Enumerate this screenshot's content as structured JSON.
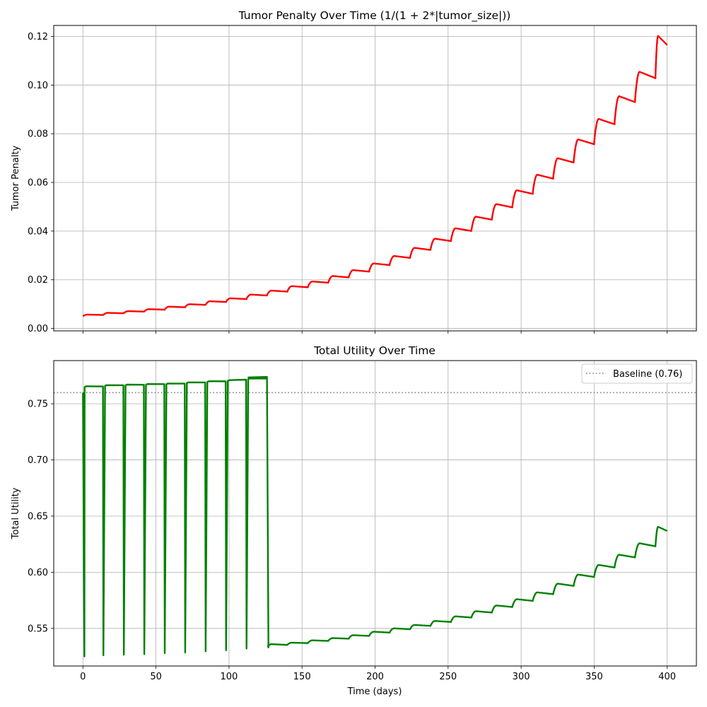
{
  "chart_data": [
    {
      "type": "line",
      "title": "Tumor Penalty Over Time (1/(1 + 2*|tumor_size|))",
      "xlabel": "",
      "ylabel": "Tumor Penalty",
      "xlim": [
        -20,
        420
      ],
      "ylim": [
        -0.001,
        0.1245
      ],
      "xticks": [
        0,
        50,
        100,
        150,
        200,
        250,
        300,
        350,
        400
      ],
      "yticks": [
        0.0,
        0.02,
        0.04,
        0.06,
        0.08,
        0.1,
        0.12
      ],
      "ytick_labels": [
        "0.00",
        "0.02",
        "0.04",
        "0.06",
        "0.08",
        "0.10",
        "0.12"
      ],
      "grid": true,
      "series": [
        {
          "color": "#ff0000",
          "x": [
            0,
            14,
            28,
            42,
            56,
            70,
            84,
            98,
            112,
            126,
            140,
            154,
            168,
            182,
            196,
            210,
            224,
            238,
            252,
            266,
            280,
            294,
            308,
            322,
            336,
            350,
            364,
            378,
            392,
            400
          ],
          "y": [
            0.005,
            0.0056,
            0.0063,
            0.007,
            0.0078,
            0.0088,
            0.0098,
            0.011,
            0.0122,
            0.0137,
            0.0153,
            0.0171,
            0.019,
            0.0212,
            0.0236,
            0.0263,
            0.0293,
            0.0326,
            0.0363,
            0.0405,
            0.0452,
            0.0503,
            0.0559,
            0.0622,
            0.0689,
            0.0765,
            0.0848,
            0.094,
            0.1039,
            0.118
          ]
        }
      ]
    },
    {
      "type": "line",
      "title": "Total Utility Over Time",
      "xlabel": "Time (days)",
      "ylabel": "Total Utility",
      "xlim": [
        -20,
        420
      ],
      "ylim": [
        0.5165,
        0.7885
      ],
      "xticks": [
        0,
        50,
        100,
        150,
        200,
        250,
        300,
        350,
        400
      ],
      "yticks": [
        0.55,
        0.6,
        0.65,
        0.7,
        0.75
      ],
      "ytick_labels": [
        "0.55",
        "0.60",
        "0.65",
        "0.70",
        "0.75"
      ],
      "grid": true,
      "legend_position": "top-right",
      "baseline": {
        "label": "Baseline (0.76)",
        "value": 0.76,
        "color": "#808080"
      },
      "series": [
        {
          "color": "#008000",
          "high_phase": {
            "x": [
              1,
              15,
              29,
              43,
              57,
              71,
              85,
              99,
              113
            ],
            "start": [
              0.765,
              0.766,
              0.7665,
              0.767,
              0.7675,
              0.7685,
              0.7695,
              0.7705,
              0.772
            ],
            "end": [
              0.7655,
              0.7665,
              0.767,
              0.7675,
              0.768,
              0.769,
              0.77,
              0.7715,
              0.7725
            ],
            "dip_x": [
              14,
              28,
              42,
              56,
              70,
              84,
              98,
              112
            ],
            "dip_min": [
              0.526,
              0.5265,
              0.527,
              0.528,
              0.5285,
              0.5295,
              0.5305,
              0.532
            ]
          },
          "first_point": {
            "x": 0,
            "y": 0.76,
            "dip_x": 1,
            "dip_y": 0.525
          },
          "last_high": {
            "x_start": 113,
            "x_end": 126,
            "y_start": 0.7735,
            "y_end": 0.774,
            "drop_x": 127,
            "drop_y": 0.533
          },
          "low_phase": {
            "x": [
              126,
              140,
              154,
              168,
              182,
              196,
              210,
              224,
              238,
              252,
              266,
              280,
              294,
              308,
              322,
              336,
              350,
              364,
              378,
              392,
              400
            ],
            "y": [
              0.533,
              0.5355,
              0.537,
              0.539,
              0.541,
              0.5435,
              0.5465,
              0.5495,
              0.5525,
              0.556,
              0.56,
              0.5645,
              0.5695,
              0.575,
              0.581,
              0.5885,
              0.5965,
              0.605,
              0.614,
              0.624,
              0.638
            ]
          }
        }
      ]
    }
  ]
}
